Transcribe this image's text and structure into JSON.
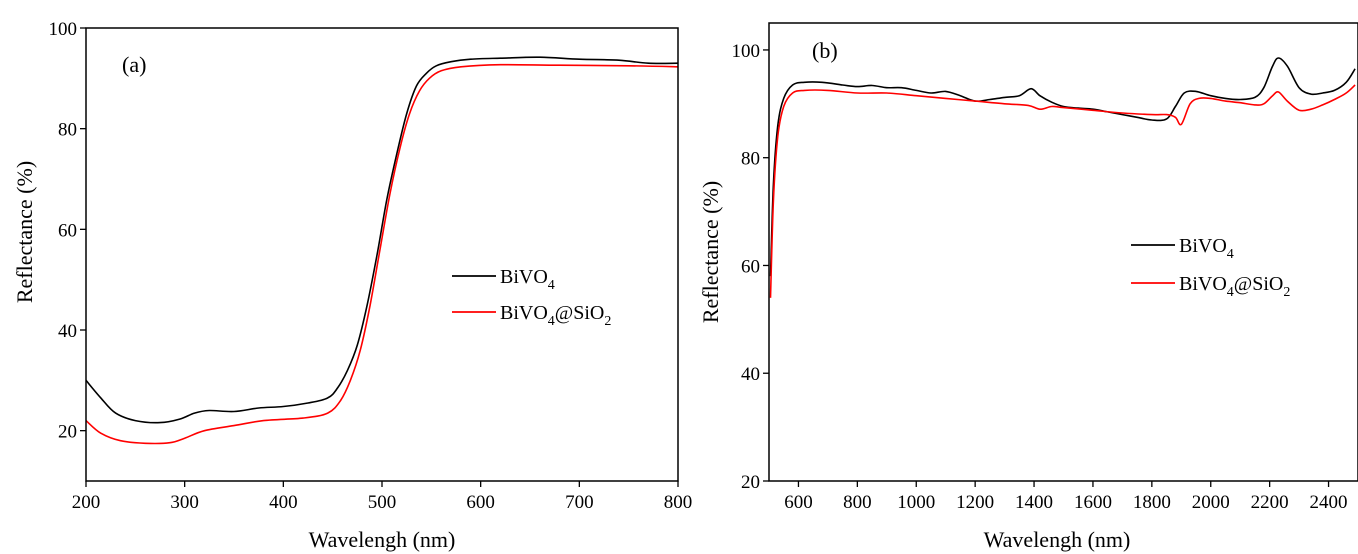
{
  "chart_data": [
    {
      "type": "line",
      "panel_label": "(a)",
      "xlabel": "Wavelengh (nm)",
      "ylabel": "Reflectance (%)",
      "xlim": [
        200,
        800
      ],
      "ylim": [
        10,
        100
      ],
      "xticks": [
        200,
        300,
        400,
        500,
        600,
        700,
        800
      ],
      "yticks": [
        20,
        40,
        60,
        80,
        100
      ],
      "legend_position": "center-right",
      "series": [
        {
          "name_main": "BiVO",
          "name_sub": "4",
          "name_tail": "",
          "color": "#000000",
          "x": [
            200,
            215,
            230,
            250,
            275,
            295,
            310,
            325,
            350,
            375,
            400,
            425,
            445,
            455,
            465,
            475,
            485,
            495,
            505,
            515,
            525,
            535,
            545,
            555,
            570,
            590,
            620,
            660,
            700,
            740,
            770,
            800
          ],
          "y": [
            30,
            26.5,
            23.5,
            22,
            21.6,
            22.3,
            23.5,
            24,
            23.8,
            24.5,
            24.8,
            25.5,
            26.5,
            28.5,
            32,
            37,
            45,
            55,
            66,
            75,
            83,
            88.5,
            91,
            92.5,
            93.3,
            93.8,
            94,
            94.2,
            93.8,
            93.6,
            93,
            93
          ]
        },
        {
          "name_main": "BiVO",
          "name_sub": "4",
          "name_tail": "@SiO",
          "name_sub2": "2",
          "color": "#ff0000",
          "x": [
            200,
            215,
            235,
            260,
            285,
            300,
            320,
            350,
            380,
            420,
            445,
            458,
            468,
            478,
            488,
            498,
            508,
            518,
            528,
            538,
            548,
            560,
            580,
            620,
            680,
            750,
            800
          ],
          "y": [
            22,
            19.5,
            18,
            17.5,
            17.6,
            18.5,
            20,
            21,
            22,
            22.5,
            23.5,
            26,
            30,
            36,
            45,
            56,
            67,
            76,
            83,
            87.5,
            90,
            91.5,
            92.3,
            92.7,
            92.6,
            92.5,
            92.3
          ]
        }
      ]
    },
    {
      "type": "line",
      "panel_label": "(b)",
      "xlabel": "Wavelengh (nm)",
      "ylabel": "Reflectance (%)",
      "xlim": [
        500,
        2500
      ],
      "ylim": [
        20,
        105
      ],
      "xticks": [
        600,
        800,
        1000,
        1200,
        1400,
        1600,
        1800,
        2000,
        2200,
        2400
      ],
      "yticks": [
        20,
        40,
        60,
        80,
        100
      ],
      "legend_position": "center-right",
      "series": [
        {
          "name_main": "BiVO",
          "name_sub": "4",
          "name_tail": "",
          "color": "#000000",
          "x": [
            505,
            515,
            530,
            550,
            580,
            620,
            680,
            750,
            800,
            850,
            900,
            950,
            1000,
            1050,
            1100,
            1150,
            1200,
            1250,
            1300,
            1350,
            1390,
            1420,
            1460,
            1500,
            1550,
            1600,
            1650,
            1700,
            1750,
            1800,
            1850,
            1880,
            1910,
            1950,
            2000,
            2050,
            2100,
            2150,
            2180,
            2210,
            2230,
            2260,
            2300,
            2340,
            2380,
            2420,
            2460,
            2490
          ],
          "y": [
            58,
            75,
            86,
            91,
            93.5,
            94,
            94,
            93.5,
            93.2,
            93.4,
            93,
            93,
            92.5,
            92,
            92.3,
            91.5,
            90.5,
            90.8,
            91.2,
            91.5,
            92.8,
            91.5,
            90.3,
            89.5,
            89.2,
            89,
            88.5,
            88,
            87.5,
            87,
            87.2,
            89.5,
            92,
            92.3,
            91.5,
            91,
            90.8,
            91.2,
            93,
            97,
            98.5,
            97,
            93,
            91.8,
            92,
            92.5,
            94,
            96.5
          ]
        },
        {
          "name_main": "BiVO",
          "name_sub": "4",
          "name_tail": "@SiO",
          "name_sub2": "2",
          "color": "#ff0000",
          "x": [
            505,
            515,
            530,
            550,
            580,
            620,
            700,
            800,
            900,
            1000,
            1100,
            1200,
            1300,
            1380,
            1420,
            1460,
            1500,
            1600,
            1700,
            1800,
            1850,
            1880,
            1900,
            1930,
            1960,
            2000,
            2050,
            2100,
            2150,
            2180,
            2210,
            2230,
            2260,
            2300,
            2340,
            2380,
            2420,
            2460,
            2490
          ],
          "y": [
            54,
            72,
            84,
            89.5,
            92,
            92.5,
            92.5,
            92,
            92,
            91.5,
            91,
            90.5,
            90,
            89.7,
            89,
            89.5,
            89.3,
            88.8,
            88.3,
            88,
            88,
            87.5,
            86.2,
            90,
            91,
            91,
            90.5,
            90.2,
            89.8,
            90,
            91.5,
            92.2,
            90.5,
            88.8,
            89,
            89.8,
            90.8,
            92,
            93.5
          ]
        }
      ]
    }
  ]
}
